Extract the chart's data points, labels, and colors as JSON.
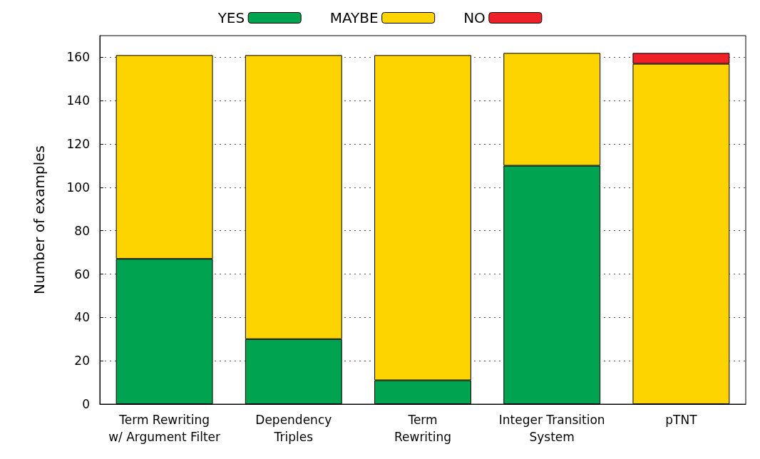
{
  "chart_data": {
    "type": "bar",
    "stacked": true,
    "ylabel": "Number of examples",
    "categories": [
      "Term Rewriting\nw/ Argument Filter",
      "Dependency\nTriples",
      "Term\nRewriting",
      "Integer Transition\nSystem",
      "pTNT"
    ],
    "series": [
      {
        "name": "YES",
        "color": "#00a450",
        "values": [
          67,
          30,
          11,
          110,
          0
        ]
      },
      {
        "name": "MAYBE",
        "color": "#fdd300",
        "values": [
          94,
          131,
          150,
          52,
          157
        ]
      },
      {
        "name": "NO",
        "color": "#ee2129",
        "values": [
          0,
          0,
          0,
          0,
          5
        ]
      }
    ],
    "ylim": [
      0,
      170
    ],
    "yticks": [
      0,
      20,
      40,
      60,
      80,
      100,
      120,
      140,
      160
    ],
    "grid": "y",
    "legend": "top"
  }
}
